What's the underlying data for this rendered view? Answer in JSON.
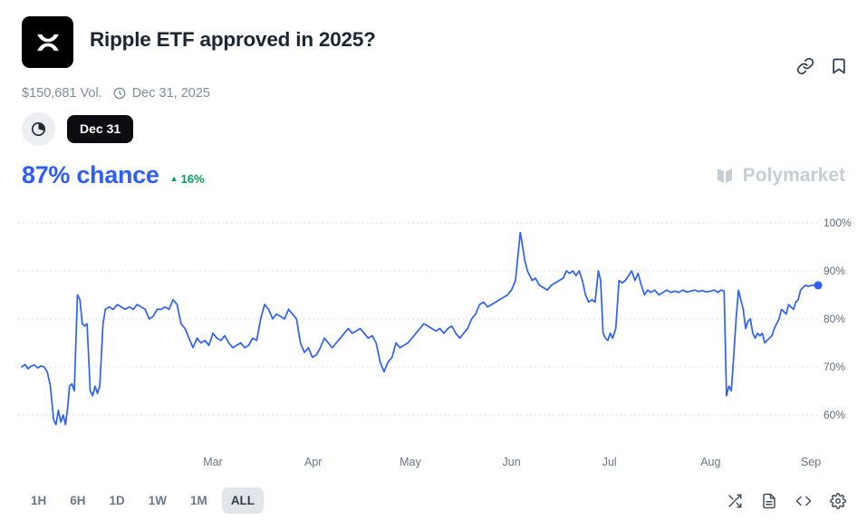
{
  "header": {
    "title": "Ripple ETF approved in 2025?",
    "volume": "$150,681 Vol.",
    "date": "Dec 31, 2025"
  },
  "controls": {
    "outcome_pill": "Dec 31"
  },
  "chance": {
    "value": "87% chance",
    "change": "16%"
  },
  "watermark": {
    "label": "Polymarket"
  },
  "toolbar": {
    "ranges": [
      "1H",
      "6H",
      "1D",
      "1W",
      "1M",
      "ALL"
    ],
    "active_range": "ALL"
  },
  "colors": {
    "accent_blue": "#2d5ff7",
    "positive_green": "#00a15f",
    "title_text": "#1c2533",
    "muted_text": "#818b99"
  },
  "chart_data": {
    "type": "line",
    "title": "Ripple ETF approved in 2025? — chance over time",
    "legend": "none",
    "grid": "dotted-horizontal",
    "yaxis_side": "right",
    "ylim": [
      56,
      101
    ],
    "yticks": [
      "100%",
      "90%",
      "80%",
      "70%",
      "60%"
    ],
    "ytick_values": [
      100,
      90,
      80,
      70,
      60
    ],
    "xticks": [
      "Mar",
      "Apr",
      "May",
      "Jun",
      "Jul",
      "Aug",
      "Sep"
    ],
    "xtick_pos": [
      0.24,
      0.366,
      0.488,
      0.615,
      0.738,
      0.865,
      0.991
    ],
    "end_value": 87,
    "series": [
      {
        "name": "Dec 31",
        "color": "#2d5ff7",
        "points": [
          [
            0,
            70
          ],
          [
            0.004,
            70.5
          ],
          [
            0.008,
            69.6
          ],
          [
            0.012,
            70.2
          ],
          [
            0.016,
            70.4
          ],
          [
            0.02,
            69.8
          ],
          [
            0.024,
            70.2
          ],
          [
            0.028,
            70
          ],
          [
            0.032,
            69
          ],
          [
            0.036,
            66
          ],
          [
            0.04,
            59
          ],
          [
            0.043,
            58
          ],
          [
            0.046,
            61
          ],
          [
            0.049,
            58.5
          ],
          [
            0.052,
            60
          ],
          [
            0.055,
            58
          ],
          [
            0.058,
            62
          ],
          [
            0.06,
            66
          ],
          [
            0.063,
            66.5
          ],
          [
            0.066,
            65
          ],
          [
            0.07,
            85
          ],
          [
            0.073,
            84
          ],
          [
            0.076,
            79
          ],
          [
            0.079,
            78.5
          ],
          [
            0.082,
            79
          ],
          [
            0.086,
            65
          ],
          [
            0.089,
            64
          ],
          [
            0.092,
            66
          ],
          [
            0.095,
            64.5
          ],
          [
            0.098,
            66
          ],
          [
            0.102,
            79
          ],
          [
            0.105,
            82
          ],
          [
            0.11,
            82.5
          ],
          [
            0.115,
            82
          ],
          [
            0.12,
            83
          ],
          [
            0.125,
            82.5
          ],
          [
            0.13,
            82
          ],
          [
            0.135,
            82.5
          ],
          [
            0.14,
            82
          ],
          [
            0.145,
            83
          ],
          [
            0.15,
            82.5
          ],
          [
            0.155,
            82
          ],
          [
            0.16,
            80
          ],
          [
            0.165,
            80.5
          ],
          [
            0.17,
            82
          ],
          [
            0.175,
            82
          ],
          [
            0.18,
            82.5
          ],
          [
            0.185,
            82
          ],
          [
            0.19,
            84
          ],
          [
            0.195,
            83
          ],
          [
            0.2,
            79
          ],
          [
            0.205,
            78
          ],
          [
            0.21,
            76
          ],
          [
            0.215,
            74
          ],
          [
            0.22,
            76
          ],
          [
            0.225,
            75
          ],
          [
            0.23,
            75.5
          ],
          [
            0.235,
            74.5
          ],
          [
            0.24,
            77
          ],
          [
            0.245,
            76
          ],
          [
            0.25,
            75.5
          ],
          [
            0.255,
            76.5
          ],
          [
            0.26,
            75
          ],
          [
            0.265,
            74
          ],
          [
            0.27,
            74.5
          ],
          [
            0.275,
            75
          ],
          [
            0.28,
            74
          ],
          [
            0.285,
            74.5
          ],
          [
            0.29,
            76
          ],
          [
            0.295,
            75.5
          ],
          [
            0.3,
            80
          ],
          [
            0.305,
            83
          ],
          [
            0.31,
            82
          ],
          [
            0.315,
            80
          ],
          [
            0.32,
            81
          ],
          [
            0.325,
            80.5
          ],
          [
            0.33,
            80
          ],
          [
            0.335,
            82
          ],
          [
            0.34,
            81
          ],
          [
            0.345,
            80
          ],
          [
            0.35,
            75
          ],
          [
            0.355,
            73
          ],
          [
            0.36,
            74
          ],
          [
            0.365,
            72
          ],
          [
            0.37,
            72.5
          ],
          [
            0.375,
            74
          ],
          [
            0.38,
            76
          ],
          [
            0.385,
            75
          ],
          [
            0.39,
            74
          ],
          [
            0.395,
            75
          ],
          [
            0.4,
            76
          ],
          [
            0.405,
            77
          ],
          [
            0.41,
            78
          ],
          [
            0.415,
            77
          ],
          [
            0.42,
            77.5
          ],
          [
            0.425,
            78
          ],
          [
            0.43,
            77
          ],
          [
            0.435,
            76
          ],
          [
            0.44,
            76.5
          ],
          [
            0.445,
            75
          ],
          [
            0.45,
            71
          ],
          [
            0.455,
            69
          ],
          [
            0.46,
            71
          ],
          [
            0.465,
            72
          ],
          [
            0.47,
            75
          ],
          [
            0.475,
            74
          ],
          [
            0.48,
            74.5
          ],
          [
            0.485,
            75
          ],
          [
            0.49,
            76
          ],
          [
            0.495,
            77
          ],
          [
            0.5,
            78
          ],
          [
            0.505,
            79
          ],
          [
            0.51,
            78.5
          ],
          [
            0.515,
            78
          ],
          [
            0.52,
            77.5
          ],
          [
            0.525,
            78
          ],
          [
            0.53,
            77
          ],
          [
            0.535,
            78
          ],
          [
            0.54,
            78.5
          ],
          [
            0.545,
            77
          ],
          [
            0.55,
            76
          ],
          [
            0.555,
            77
          ],
          [
            0.56,
            78
          ],
          [
            0.565,
            80
          ],
          [
            0.57,
            81
          ],
          [
            0.575,
            83
          ],
          [
            0.58,
            83.5
          ],
          [
            0.585,
            82.5
          ],
          [
            0.59,
            83
          ],
          [
            0.595,
            83.5
          ],
          [
            0.6,
            84
          ],
          [
            0.605,
            84.5
          ],
          [
            0.61,
            85
          ],
          [
            0.615,
            86
          ],
          [
            0.62,
            88
          ],
          [
            0.623,
            93
          ],
          [
            0.626,
            98
          ],
          [
            0.629,
            95
          ],
          [
            0.632,
            92
          ],
          [
            0.635,
            90
          ],
          [
            0.638,
            89
          ],
          [
            0.641,
            88
          ],
          [
            0.645,
            88.5
          ],
          [
            0.65,
            87
          ],
          [
            0.655,
            86.5
          ],
          [
            0.66,
            86
          ],
          [
            0.665,
            87
          ],
          [
            0.67,
            87.5
          ],
          [
            0.675,
            88
          ],
          [
            0.68,
            88.5
          ],
          [
            0.684,
            90
          ],
          [
            0.688,
            89.5
          ],
          [
            0.692,
            90
          ],
          [
            0.696,
            89
          ],
          [
            0.7,
            90
          ],
          [
            0.704,
            88
          ],
          [
            0.708,
            85
          ],
          [
            0.712,
            83.5
          ],
          [
            0.716,
            84
          ],
          [
            0.72,
            83.5
          ],
          [
            0.724,
            90
          ],
          [
            0.727,
            88
          ],
          [
            0.73,
            77
          ],
          [
            0.733,
            76
          ],
          [
            0.736,
            75.5
          ],
          [
            0.739,
            77
          ],
          [
            0.742,
            76
          ],
          [
            0.746,
            78
          ],
          [
            0.75,
            88
          ],
          [
            0.754,
            87.5
          ],
          [
            0.758,
            88
          ],
          [
            0.762,
            89
          ],
          [
            0.766,
            90
          ],
          [
            0.77,
            88
          ],
          [
            0.774,
            89.5
          ],
          [
            0.778,
            87
          ],
          [
            0.782,
            85
          ],
          [
            0.786,
            86
          ],
          [
            0.79,
            85.5
          ],
          [
            0.795,
            86
          ],
          [
            0.8,
            85
          ],
          [
            0.805,
            85.5
          ],
          [
            0.81,
            86
          ],
          [
            0.815,
            85.5
          ],
          [
            0.82,
            85.8
          ],
          [
            0.825,
            85.5
          ],
          [
            0.83,
            86
          ],
          [
            0.835,
            85.6
          ],
          [
            0.84,
            85.8
          ],
          [
            0.845,
            86
          ],
          [
            0.85,
            85.7
          ],
          [
            0.855,
            85.9
          ],
          [
            0.86,
            85.6
          ],
          [
            0.865,
            85.8
          ],
          [
            0.87,
            86
          ],
          [
            0.874,
            85.5
          ],
          [
            0.878,
            86
          ],
          [
            0.882,
            85.8
          ],
          [
            0.885,
            64
          ],
          [
            0.888,
            66
          ],
          [
            0.891,
            65
          ],
          [
            0.894,
            72
          ],
          [
            0.897,
            80
          ],
          [
            0.9,
            86
          ],
          [
            0.903,
            84
          ],
          [
            0.906,
            82
          ],
          [
            0.909,
            78
          ],
          [
            0.912,
            79.5
          ],
          [
            0.915,
            80
          ],
          [
            0.918,
            77
          ],
          [
            0.921,
            76
          ],
          [
            0.924,
            77
          ],
          [
            0.927,
            76.5
          ],
          [
            0.93,
            77
          ],
          [
            0.933,
            75
          ],
          [
            0.936,
            75.5
          ],
          [
            0.939,
            76
          ],
          [
            0.942,
            76.5
          ],
          [
            0.945,
            78
          ],
          [
            0.948,
            79
          ],
          [
            0.951,
            80
          ],
          [
            0.954,
            82
          ],
          [
            0.957,
            81.5
          ],
          [
            0.96,
            81
          ],
          [
            0.963,
            83
          ],
          [
            0.966,
            82.5
          ],
          [
            0.969,
            82
          ],
          [
            0.972,
            83.5
          ],
          [
            0.975,
            84
          ],
          [
            0.978,
            86
          ],
          [
            0.981,
            86.5
          ],
          [
            0.984,
            87
          ],
          [
            0.988,
            86.8
          ],
          [
            0.992,
            87
          ],
          [
            0.996,
            87
          ],
          [
            1,
            87
          ]
        ]
      }
    ]
  }
}
